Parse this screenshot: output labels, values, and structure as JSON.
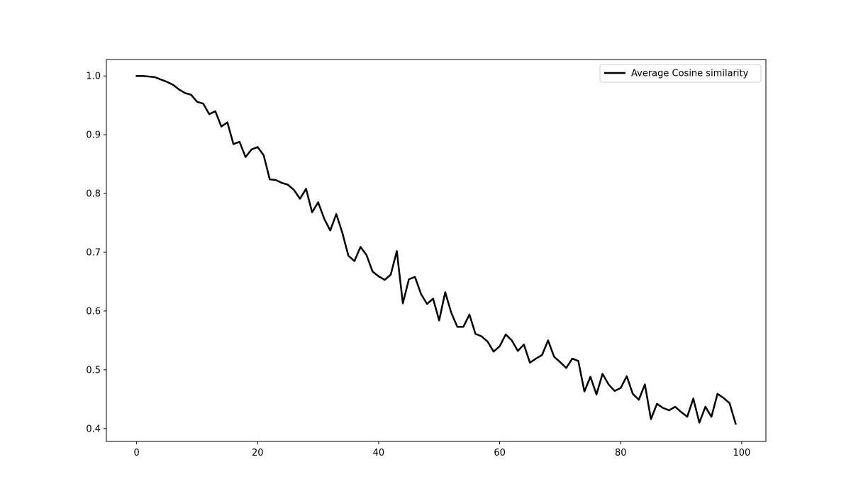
{
  "chart_data": {
    "type": "line",
    "title": "",
    "xlabel": "",
    "ylabel": "",
    "xlim": [
      -5,
      104
    ],
    "ylim": [
      0.378,
      1.028
    ],
    "x_ticks": [
      0,
      20,
      40,
      60,
      80,
      100
    ],
    "x_tick_labels": [
      "0",
      "20",
      "40",
      "60",
      "80",
      "100"
    ],
    "y_ticks": [
      0.4,
      0.5,
      0.6,
      0.7,
      0.8,
      0.9,
      1.0
    ],
    "y_tick_labels": [
      "0.4",
      "0.5",
      "0.6",
      "0.7",
      "0.8",
      "0.9",
      "1.0"
    ],
    "grid": false,
    "legend_position": "top-right",
    "series": [
      {
        "name": "Average Cosine similarity",
        "color": "#000000",
        "x": [
          0,
          1,
          2,
          3,
          4,
          5,
          6,
          7,
          8,
          9,
          10,
          11,
          12,
          13,
          14,
          15,
          16,
          17,
          18,
          19,
          20,
          21,
          22,
          23,
          24,
          25,
          26,
          27,
          28,
          29,
          30,
          31,
          32,
          33,
          34,
          35,
          36,
          37,
          38,
          39,
          40,
          41,
          42,
          43,
          44,
          45,
          46,
          47,
          48,
          49,
          50,
          51,
          52,
          53,
          54,
          55,
          56,
          57,
          58,
          59,
          60,
          61,
          62,
          63,
          64,
          65,
          66,
          67,
          68,
          69,
          70,
          71,
          72,
          73,
          74,
          75,
          76,
          77,
          78,
          79,
          80,
          81,
          82,
          83,
          84,
          85,
          86,
          87,
          88,
          89,
          90,
          91,
          92,
          93,
          94,
          95,
          96,
          97,
          98,
          99
        ],
        "values": [
          1.0,
          1.0,
          0.999,
          0.998,
          0.994,
          0.99,
          0.985,
          0.977,
          0.971,
          0.968,
          0.956,
          0.953,
          0.935,
          0.94,
          0.914,
          0.921,
          0.884,
          0.888,
          0.862,
          0.875,
          0.879,
          0.865,
          0.824,
          0.823,
          0.818,
          0.815,
          0.806,
          0.791,
          0.808,
          0.768,
          0.785,
          0.757,
          0.737,
          0.765,
          0.733,
          0.694,
          0.685,
          0.709,
          0.695,
          0.667,
          0.659,
          0.653,
          0.662,
          0.702,
          0.613,
          0.654,
          0.658,
          0.629,
          0.612,
          0.621,
          0.584,
          0.632,
          0.597,
          0.573,
          0.573,
          0.594,
          0.561,
          0.557,
          0.548,
          0.531,
          0.54,
          0.56,
          0.55,
          0.532,
          0.543,
          0.512,
          0.519,
          0.525,
          0.55,
          0.522,
          0.513,
          0.503,
          0.519,
          0.515,
          0.463,
          0.488,
          0.458,
          0.493,
          0.475,
          0.464,
          0.469,
          0.489,
          0.459,
          0.449,
          0.475,
          0.416,
          0.442,
          0.435,
          0.431,
          0.437,
          0.428,
          0.42,
          0.451,
          0.41,
          0.437,
          0.42,
          0.459,
          0.452,
          0.443,
          0.408
        ]
      }
    ]
  }
}
